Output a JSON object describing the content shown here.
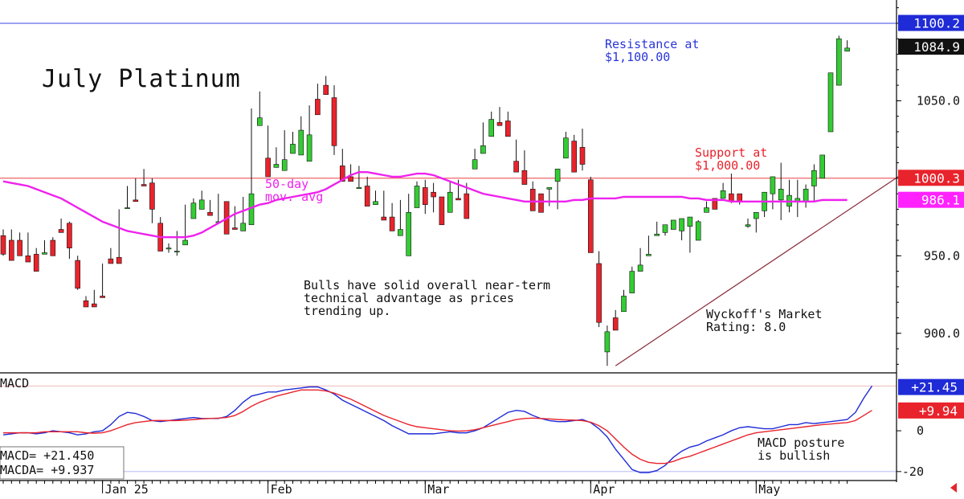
{
  "chart_data": {
    "type": "candlestick",
    "title": "July Platinum",
    "price_axis": {
      "ylim": [
        875,
        1115
      ],
      "ticks": [
        900,
        950,
        1050
      ],
      "tick_labels": [
        "900.0",
        "950.0",
        "1050.0"
      ]
    },
    "date_axis": {
      "labels": [
        {
          "label": "Jan 25",
          "index": 12
        },
        {
          "label": "Feb",
          "index": 32
        },
        {
          "label": "Mar",
          "index": 51
        },
        {
          "label": "Apr",
          "index": 71
        },
        {
          "label": "May",
          "index": 91
        }
      ]
    },
    "annotations": {
      "resistance": "Resistance at\n$1,100.00",
      "support": "Support at\n$1,000.00",
      "moving_average": "50-day\nmov. avg",
      "commentary": "Bulls have solid overall near-term\ntechnical advantage as prices\ntrending up.",
      "rating": "Wyckoff's Market\nRating: 8.0",
      "macd_note": "MACD posture\nis bullish"
    },
    "price_tags": [
      {
        "label": "1100.2",
        "value": 1100.2,
        "color": "#1f2bd6"
      },
      {
        "label": "1084.9",
        "value": 1084.9,
        "color": "#111111"
      },
      {
        "label": "1000.3",
        "value": 1000.3,
        "color": "#e8232c"
      },
      {
        "label": "986.1",
        "value": 986.1,
        "color": "#ff22ff"
      }
    ],
    "lines": {
      "resistance": 1100,
      "support": 1000,
      "trendline": [
        {
          "index": 74,
          "price": 879
        },
        {
          "index": 109,
          "price": 1004
        }
      ]
    },
    "candles": [
      [
        963,
        967,
        951,
        950
      ],
      [
        960,
        965,
        947,
        967
      ],
      [
        960,
        965,
        950,
        955
      ],
      [
        950,
        955,
        946,
        965
      ],
      [
        951,
        955,
        940,
        943
      ],
      [
        951,
        958,
        952,
        960
      ],
      [
        960,
        961,
        950,
        962
      ],
      [
        967,
        970,
        965,
        974
      ],
      [
        971,
        972,
        955,
        948
      ],
      [
        947,
        950,
        929,
        928
      ],
      [
        921,
        924,
        917,
        920
      ],
      [
        919,
        928,
        917,
        926
      ],
      [
        924,
        945,
        923,
        945
      ],
      [
        948,
        952,
        945,
        955
      ],
      [
        949,
        980,
        945,
        980
      ],
      [
        981,
        990,
        981,
        995
      ],
      [
        986,
        994,
        985,
        1000
      ],
      [
        996,
        1006,
        995,
        998
      ],
      [
        997,
        1000,
        980,
        971
      ],
      [
        971,
        975,
        953,
        955
      ],
      [
        955,
        958,
        955,
        952
      ],
      [
        953,
        966,
        953,
        950
      ],
      [
        957,
        980,
        960,
        983
      ],
      [
        974,
        984,
        984,
        987
      ],
      [
        980,
        992,
        986,
        988
      ],
      [
        978,
        980,
        976,
        986
      ],
      [
        972,
        987,
        972,
        990
      ],
      [
        985,
        975,
        964,
        966
      ],
      [
        968,
        982,
        967,
        970
      ],
      [
        966,
        975,
        971,
        988
      ],
      [
        970,
        1045,
        990,
        1042
      ],
      [
        1034,
        1052,
        1039,
        1056
      ],
      [
        1013,
        1034,
        1001,
        1005
      ],
      [
        1007,
        1015,
        1009,
        1020
      ],
      [
        1005,
        1021,
        1012,
        1031
      ],
      [
        1016,
        1030,
        1022,
        1027
      ],
      [
        1015,
        1040,
        1031,
        1040
      ],
      [
        1011,
        1023,
        1028,
        1047
      ],
      [
        1051,
        1057,
        1041,
        1061
      ],
      [
        1060,
        1058,
        1054,
        1066
      ],
      [
        1052,
        1060,
        1021,
        1015
      ],
      [
        1008,
        1019,
        998,
        1008
      ],
      [
        1001,
        1009,
        998,
        1006
      ],
      [
        994,
        1004,
        994,
        1008
      ],
      [
        995,
        1001,
        982,
        982
      ],
      [
        983,
        992,
        985,
        992
      ],
      [
        975,
        987,
        973,
        992
      ],
      [
        975,
        984,
        966,
        970
      ],
      [
        963,
        986,
        967,
        970
      ],
      [
        950,
        956,
        978,
        990
      ],
      [
        981,
        992,
        995,
        998
      ],
      [
        994,
        999,
        983,
        977
      ],
      [
        991,
        997,
        988,
        978
      ],
      [
        988,
        987,
        970,
        970
      ],
      [
        978,
        993,
        991,
        998
      ],
      [
        987,
        993,
        986,
        999
      ],
      [
        990,
        997,
        974,
        978
      ],
      [
        1006,
        1019,
        1012,
        1019
      ],
      [
        1016,
        1028,
        1021,
        1036
      ],
      [
        1027,
        1043,
        1038,
        1040
      ],
      [
        1036,
        1046,
        1034,
        1038
      ],
      [
        1037,
        1043,
        1027,
        1034
      ],
      [
        1011,
        1025,
        1004,
        1015
      ],
      [
        1005,
        1018,
        996,
        998
      ],
      [
        993,
        998,
        979,
        987
      ],
      [
        990,
        990,
        978,
        978
      ],
      [
        993,
        982,
        994,
        985
      ],
      [
        998,
        980,
        1006,
        1005
      ],
      [
        1013,
        1024,
        1026,
        1030
      ],
      [
        1024,
        1028,
        1004,
        1004
      ],
      [
        1020,
        1032,
        1009,
        1005
      ],
      [
        999,
        1001,
        952,
        961
      ],
      [
        945,
        953,
        907,
        904
      ],
      [
        888,
        879,
        901,
        905
      ],
      [
        910,
        915,
        902,
        903
      ],
      [
        914,
        928,
        924,
        924
      ],
      [
        926,
        936,
        940,
        943
      ],
      [
        940,
        946,
        944,
        955
      ],
      [
        950,
        960,
        951,
        963
      ],
      [
        963,
        967,
        964,
        972
      ],
      [
        965,
        963,
        970,
        969
      ],
      [
        967,
        972,
        973,
        968
      ],
      [
        966,
        960,
        974,
        965
      ],
      [
        969,
        952,
        975,
        969
      ],
      [
        960,
        963,
        972,
        973
      ],
      [
        978,
        985,
        981,
        981
      ],
      [
        987,
        981,
        980,
        980
      ],
      [
        987,
        992,
        992,
        997
      ],
      [
        990,
        984,
        985,
        1003
      ],
      [
        990,
        984,
        985,
        983
      ],
      [
        969,
        974,
        970,
        968
      ],
      [
        974,
        965,
        978,
        973
      ],
      [
        979,
        975,
        991,
        988
      ],
      [
        990,
        980,
        1001,
        1000
      ],
      [
        986,
        973,
        993,
        1010
      ],
      [
        982,
        978,
        989,
        999
      ],
      [
        985,
        975,
        987,
        999
      ],
      [
        985,
        981,
        993,
        996
      ],
      [
        995,
        985,
        1005,
        1009
      ],
      [
        1000,
        1010,
        1015,
        1012
      ],
      [
        1030,
        1063,
        1068,
        1063
      ],
      [
        1060,
        1086,
        1090,
        1092
      ],
      [
        1082,
        1085,
        1084,
        1089
      ]
    ],
    "series": [
      {
        "name": "50-day mov. avg",
        "color": "#ee22ee",
        "values": [
          998,
          997,
          996,
          995,
          993,
          991,
          989,
          987,
          984,
          981,
          978,
          975,
          972,
          970,
          968,
          966,
          965,
          964,
          963,
          962,
          962,
          962,
          962,
          963,
          965,
          968,
          971,
          974,
          977,
          979,
          981,
          983,
          984,
          986,
          987,
          988,
          989,
          990,
          991,
          993,
          996,
          999,
          1002,
          1004,
          1004,
          1003,
          1002,
          1001,
          1001,
          1002,
          1003,
          1003,
          1002,
          1000,
          998,
          996,
          994,
          992,
          990,
          989,
          988,
          987,
          986,
          985,
          985,
          985,
          985,
          985,
          985,
          986,
          986,
          987,
          987,
          987,
          987,
          988,
          988,
          988,
          988,
          988,
          988,
          988,
          988,
          987,
          987,
          986,
          986,
          986,
          985,
          985,
          985,
          985,
          985,
          985,
          985,
          985,
          985,
          985,
          985,
          986,
          986,
          986,
          986
        ]
      }
    ],
    "macd": {
      "label": "MACD",
      "ylim": [
        -24,
        28
      ],
      "ticks": [
        0,
        -20
      ],
      "tick_labels": [
        "0",
        "-20"
      ],
      "readout": {
        "macd": "MACD= +21.450",
        "macda": "MACDA= +9.937"
      },
      "tags": [
        {
          "label": "+21.45",
          "value": 21.45,
          "color": "#1f2bd6"
        },
        {
          "label": "+9.94",
          "value": 9.94,
          "color": "#e8232c"
        }
      ],
      "ref_lines": [
        22,
        -20
      ],
      "series": [
        {
          "name": "MACD",
          "color": "#1f2bd6",
          "values": [
            -2,
            -1.5,
            -1,
            -1,
            -1.5,
            -1,
            0,
            -0.5,
            -1,
            -2,
            -1.5,
            -0.5,
            0,
            3,
            7,
            9,
            8.5,
            7,
            5,
            4.5,
            5,
            5.5,
            6,
            6.5,
            6,
            6,
            6,
            7,
            10,
            14,
            17,
            18,
            19,
            19,
            20,
            20.5,
            21,
            21.5,
            21.5,
            20,
            18,
            15,
            13,
            11,
            9,
            7,
            5,
            2.5,
            0.5,
            -1.5,
            -1.5,
            -1.5,
            -1.5,
            -1,
            -0.5,
            -1,
            -1,
            0,
            1.5,
            4,
            6.5,
            9,
            10,
            9.5,
            7.5,
            6,
            5,
            4.5,
            4.5,
            5,
            5.5,
            4,
            1,
            -3,
            -9,
            -14,
            -19,
            -20.5,
            -20.5,
            -19.5,
            -17,
            -13,
            -10,
            -8,
            -7,
            -5,
            -3.5,
            -2,
            0,
            1.5,
            2,
            1.5,
            1,
            1,
            2,
            3,
            3,
            4,
            3.5,
            4,
            4.5,
            5,
            5.5,
            9,
            16,
            22
          ]
        },
        {
          "name": "MACDA",
          "color": "#e8232c",
          "values": [
            -1,
            -1,
            -1,
            -1,
            -1,
            -0.5,
            -0.5,
            -0.5,
            -0.5,
            -0.5,
            -1,
            -1.2,
            -1,
            0,
            1.5,
            3,
            4,
            4.5,
            5,
            5,
            5,
            5,
            5.2,
            5.5,
            5.8,
            6,
            6.2,
            6.5,
            7.5,
            9.5,
            12,
            14,
            15.5,
            17,
            18,
            19,
            20,
            20,
            20,
            19.5,
            18.5,
            17,
            15.5,
            13.5,
            11.5,
            9.5,
            7.5,
            6,
            4.5,
            3,
            2,
            1.5,
            1,
            0.5,
            0,
            -0.2,
            0,
            0.5,
            1.5,
            2.5,
            3.5,
            4.5,
            5.5,
            6,
            6.2,
            6,
            5.8,
            5.5,
            5.3,
            5.2,
            5,
            4.2,
            2.5,
            0,
            -4,
            -8,
            -11.5,
            -14,
            -15.5,
            -16,
            -16,
            -15,
            -13.5,
            -12.5,
            -11,
            -9.5,
            -8,
            -6.5,
            -5,
            -3.5,
            -2,
            -1,
            -0.5,
            0,
            0.5,
            1,
            1.5,
            2,
            2.5,
            3,
            3.3,
            3.7,
            4,
            5,
            7.5,
            10
          ]
        }
      ]
    }
  }
}
